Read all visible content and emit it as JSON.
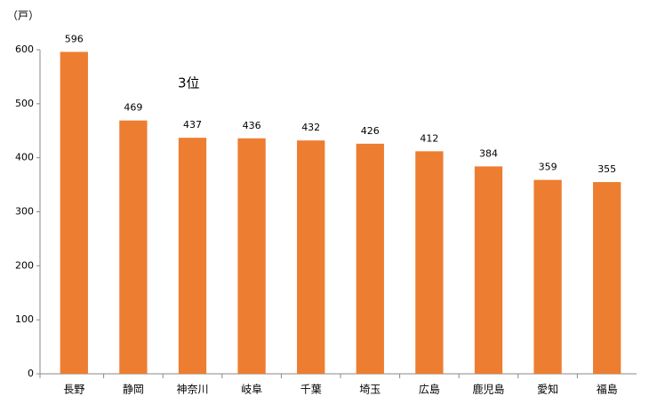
{
  "chart_data": {
    "type": "bar",
    "y_unit": "（戸）",
    "annotation": "3位",
    "categories": [
      "長野",
      "静岡",
      "神奈川",
      "岐阜",
      "千葉",
      "埼玉",
      "広島",
      "鹿児島",
      "愛知",
      "福島"
    ],
    "values": [
      596,
      469,
      437,
      436,
      432,
      426,
      412,
      384,
      359,
      355
    ],
    "color": "#ed7d31",
    "ylim": [
      0,
      600
    ],
    "yticks": [
      0,
      100,
      200,
      300,
      400,
      500,
      600
    ],
    "grid": false
  }
}
